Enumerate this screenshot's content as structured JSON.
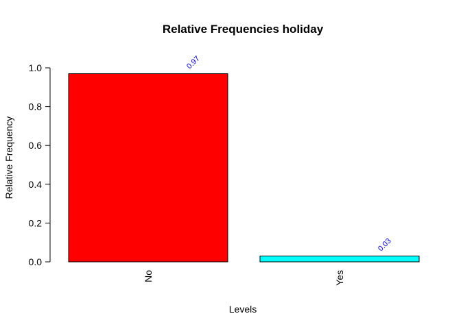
{
  "chart_data": {
    "type": "bar",
    "title": "Relative Frequencies holiday",
    "xlabel": "Levels",
    "ylabel": "Relative Frequency",
    "categories": [
      "No",
      "Yes"
    ],
    "values": [
      0.97,
      0.03
    ],
    "data_labels": [
      "0.97",
      "0.03"
    ],
    "bar_colors": [
      "#ff0000",
      "#00ffff"
    ],
    "label_color": "#0000cd",
    "ylim": [
      0,
      1
    ],
    "yticks": [
      0.0,
      0.2,
      0.4,
      0.6,
      0.8,
      1.0
    ],
    "ytick_labels": [
      "0.0",
      "0.2",
      "0.4",
      "0.6",
      "0.8",
      "1.0"
    ],
    "grid": false,
    "legend": "none"
  }
}
